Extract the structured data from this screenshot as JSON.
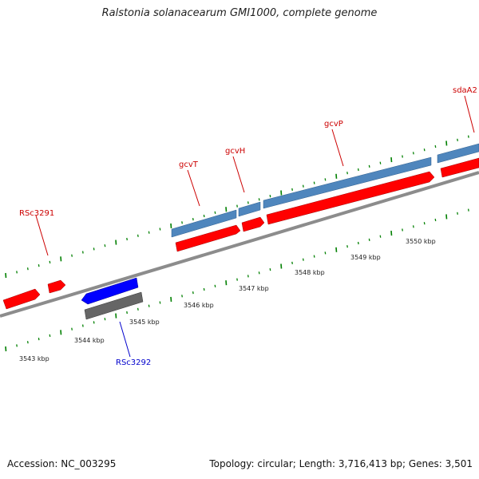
{
  "title": "Ralstonia solanacearum GMI1000, complete genome",
  "footer": {
    "accession": "Accession: NC_003295",
    "summary": "Topology: circular; Length: 3,716,413 bp; Genes: 3,501"
  },
  "colors": {
    "forward_cds": "#ff0000",
    "reverse_cds": "#0000ff",
    "forward_gene": "#4f86bd",
    "reverse_gene": "#666666",
    "backbone": "#8c8c8c",
    "ticks": "#008000",
    "forward_label": "#cc0000",
    "reverse_label": "#0000cc"
  },
  "scale_labels": [
    "3543 kbp",
    "3544 kbp",
    "3545 kbp",
    "3546 kbp",
    "3547 kbp",
    "3548 kbp",
    "3549 kbp",
    "3550 kbp"
  ],
  "gene_labels": [
    {
      "name": "RSc3291",
      "strand": "forward"
    },
    {
      "name": "gcvT",
      "strand": "forward"
    },
    {
      "name": "gcvH",
      "strand": "forward"
    },
    {
      "name": "gcvP",
      "strand": "forward"
    },
    {
      "name": "sdaA2",
      "strand": "forward"
    },
    {
      "name": "RSc3292",
      "strand": "reverse"
    }
  ]
}
